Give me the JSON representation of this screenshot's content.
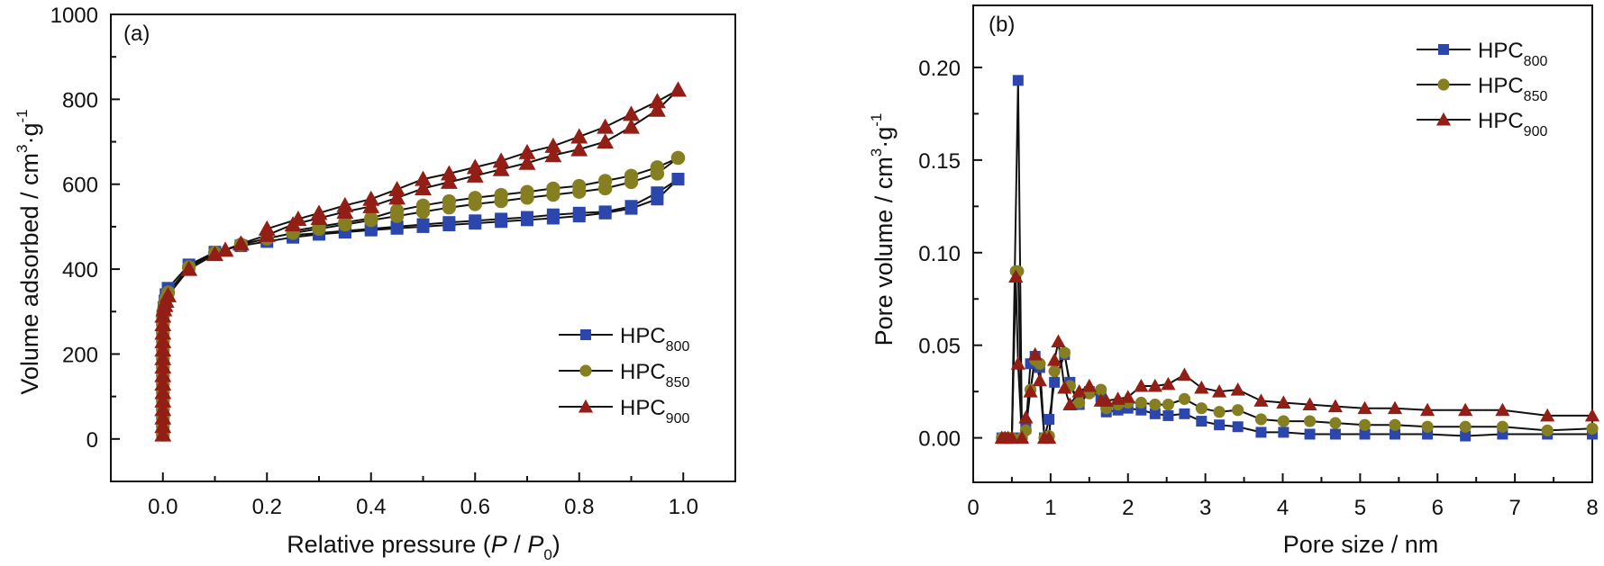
{
  "chart_data": [
    {
      "type": "line",
      "panel_label": "(a)",
      "title": "",
      "xlabel": "Relative pressure (P/P0)",
      "xlabel_parts": {
        "prefix": "Relative pressure (",
        "p": "P",
        "slash": " / ",
        "p0": "P",
        "sub": "0",
        "suffix": ")"
      },
      "ylabel": "Volume adsorbed / cm3·g-1",
      "ylabel_parts": {
        "main": "Volume adsorbed / cm",
        "sup1": "3",
        "mid": "·g",
        "sup2": "-1"
      },
      "xlim": [
        -0.1,
        1.1
      ],
      "ylim": [
        -100,
        1000
      ],
      "xticks": [
        "0.0",
        "0.2",
        "0.4",
        "0.6",
        "0.8",
        "1.0"
      ],
      "xtick_values": [
        0,
        0.2,
        0.4,
        0.6,
        0.8,
        1.0
      ],
      "yticks": [
        "0",
        "200",
        "400",
        "600",
        "800",
        "1000"
      ],
      "ytick_values": [
        0,
        200,
        400,
        600,
        800,
        1000
      ],
      "grid": false,
      "legend_position": "lower-right",
      "series": [
        {
          "name": "HPC",
          "sub": "800",
          "marker": "square",
          "color": "#2b47ad",
          "adsorption": {
            "x": [
              0.0,
              0.0,
              0.0,
              0.0,
              0.0,
              0.0,
              0.0,
              0.0,
              0.0,
              0.0,
              0.0,
              0.0,
              0.0,
              0.0,
              0.0,
              0.002,
              0.004,
              0.006,
              0.01,
              0.05,
              0.1,
              0.15,
              0.2,
              0.25,
              0.3,
              0.35,
              0.4,
              0.45,
              0.5,
              0.55,
              0.6,
              0.65,
              0.7,
              0.75,
              0.8,
              0.85,
              0.9,
              0.95,
              0.99
            ],
            "y": [
              10,
              30,
              50,
              70,
              90,
              110,
              130,
              150,
              170,
              190,
              210,
              230,
              250,
              270,
              290,
              310,
              325,
              340,
              355,
              410,
              440,
              455,
              465,
              475,
              482,
              487,
              492,
              496,
              500,
              504,
              508,
              512,
              516,
              520,
              525,
              532,
              543,
              565,
              612
            ]
          },
          "desorption": {
            "x": [
              0.99,
              0.95,
              0.9,
              0.85,
              0.8,
              0.75,
              0.7,
              0.65,
              0.6,
              0.55,
              0.5,
              0.45,
              0.4,
              0.35,
              0.3,
              0.25
            ],
            "y": [
              612,
              580,
              548,
              535,
              532,
              528,
              522,
              518,
              514,
              510,
              505,
              500,
              495,
              490,
              485,
              480
            ]
          }
        },
        {
          "name": "HPC",
          "sub": "850",
          "marker": "circle",
          "color": "#857f22",
          "adsorption": {
            "x": [
              0.0,
              0.0,
              0.0,
              0.0,
              0.0,
              0.0,
              0.0,
              0.0,
              0.0,
              0.0,
              0.0,
              0.0,
              0.0,
              0.0,
              0.0,
              0.002,
              0.004,
              0.006,
              0.01,
              0.05,
              0.1,
              0.15,
              0.2,
              0.25,
              0.3,
              0.35,
              0.4,
              0.45,
              0.5,
              0.55,
              0.6,
              0.65,
              0.7,
              0.75,
              0.8,
              0.85,
              0.9,
              0.95,
              0.99
            ],
            "y": [
              10,
              30,
              50,
              70,
              90,
              110,
              130,
              150,
              170,
              190,
              210,
              230,
              250,
              270,
              290,
              305,
              318,
              330,
              345,
              405,
              438,
              458,
              472,
              485,
              495,
              505,
              515,
              525,
              535,
              545,
              553,
              560,
              568,
              575,
              582,
              590,
              605,
              625,
              662
            ]
          },
          "desorption": {
            "x": [
              0.99,
              0.95,
              0.9,
              0.85,
              0.8,
              0.75,
              0.7,
              0.65,
              0.6,
              0.55,
              0.5,
              0.45,
              0.4,
              0.35,
              0.3,
              0.25
            ],
            "y": [
              662,
              640,
              620,
              608,
              596,
              590,
              582,
              575,
              568,
              560,
              550,
              538,
              520,
              510,
              500,
              490
            ]
          }
        },
        {
          "name": "HPC",
          "sub": "900",
          "marker": "triangle",
          "color": "#921e16",
          "adsorption": {
            "x": [
              0.0,
              0.0,
              0.0,
              0.0,
              0.0,
              0.0,
              0.0,
              0.0,
              0.0,
              0.0,
              0.0,
              0.0,
              0.0,
              0.0,
              0.0,
              0.002,
              0.004,
              0.006,
              0.01,
              0.05,
              0.1,
              0.12,
              0.15,
              0.2,
              0.25,
              0.3,
              0.35,
              0.4,
              0.45,
              0.5,
              0.55,
              0.6,
              0.65,
              0.7,
              0.75,
              0.8,
              0.85,
              0.9,
              0.95,
              0.99
            ],
            "y": [
              10,
              30,
              50,
              70,
              90,
              110,
              130,
              150,
              170,
              190,
              210,
              230,
              250,
              270,
              290,
              305,
              315,
              325,
              338,
              400,
              435,
              445,
              460,
              480,
              505,
              520,
              535,
              548,
              568,
              590,
              605,
              620,
              635,
              650,
              668,
              682,
              700,
              735,
              775,
              822
            ]
          },
          "desorption": {
            "x": [
              0.99,
              0.95,
              0.9,
              0.85,
              0.8,
              0.75,
              0.7,
              0.65,
              0.6,
              0.55,
              0.5,
              0.45,
              0.4,
              0.35,
              0.3,
              0.26,
              0.2
            ],
            "y": [
              822,
              795,
              765,
              735,
              712,
              690,
              675,
              655,
              640,
              625,
              612,
              588,
              565,
              550,
              532,
              518,
              495
            ]
          }
        }
      ]
    },
    {
      "type": "line",
      "panel_label": "(b)",
      "title": "",
      "xlabel": "Pore size / nm",
      "ylabel": "Pore volume / cm3·g-1",
      "ylabel_parts": {
        "main": "Pore volume / cm",
        "sup1": "3",
        "mid": "·g",
        "sup2": "-1"
      },
      "xlim": [
        0,
        8
      ],
      "ylim": [
        -0.024,
        0.2335
      ],
      "xticks": [
        "0",
        "1",
        "2",
        "3",
        "4",
        "5",
        "6",
        "7",
        "8"
      ],
      "xtick_values": [
        0,
        1,
        2,
        3,
        4,
        5,
        6,
        7,
        8
      ],
      "yticks": [
        "0.00",
        "0.05",
        "0.10",
        "0.15",
        "0.20"
      ],
      "ytick_values": [
        0,
        0.05,
        0.1,
        0.15,
        0.2
      ],
      "grid": false,
      "legend_position": "top-right",
      "series": [
        {
          "name": "HPC",
          "sub": "800",
          "marker": "square",
          "color": "#2b47ad",
          "x": [
            0.37,
            0.41,
            0.45,
            0.5,
            0.58,
            0.63,
            0.68,
            0.74,
            0.8,
            0.86,
            0.92,
            0.98,
            1.05,
            1.18,
            1.25,
            1.37,
            1.5,
            1.65,
            1.72,
            1.87,
            2.0,
            2.17,
            2.35,
            2.52,
            2.73,
            2.95,
            3.18,
            3.42,
            3.72,
            4.01,
            4.35,
            4.68,
            5.06,
            5.45,
            5.87,
            6.36,
            6.84,
            7.42,
            8.0
          ],
          "y": [
            0,
            0,
            0,
            0,
            0.193,
            0,
            0.005,
            0.04,
            0.044,
            0.038,
            0,
            0.01,
            0.03,
            0.045,
            0.03,
            0.018,
            0.025,
            0.022,
            0.014,
            0.015,
            0.016,
            0.015,
            0.013,
            0.012,
            0.013,
            0.009,
            0.007,
            0.006,
            0.003,
            0.003,
            0.002,
            0.002,
            0.002,
            0.002,
            0.002,
            0.001,
            0.002,
            0.002,
            0.002
          ]
        },
        {
          "name": "HPC",
          "sub": "850",
          "marker": "circle",
          "color": "#857f22",
          "x": [
            0.37,
            0.41,
            0.45,
            0.5,
            0.55,
            0.58,
            0.63,
            0.68,
            0.74,
            0.8,
            0.86,
            0.92,
            0.98,
            1.05,
            1.18,
            1.25,
            1.37,
            1.5,
            1.65,
            1.72,
            1.87,
            2.0,
            2.17,
            2.35,
            2.52,
            2.73,
            2.95,
            3.18,
            3.42,
            3.72,
            4.01,
            4.35,
            4.68,
            5.06,
            5.45,
            5.87,
            6.36,
            6.84,
            7.42,
            8.0
          ],
          "y": [
            0,
            0,
            0,
            0,
            0.09,
            0.09,
            0,
            0.004,
            0.026,
            0.042,
            0.04,
            0,
            0.001,
            0.036,
            0.046,
            0.028,
            0.019,
            0.024,
            0.026,
            0.016,
            0.018,
            0.019,
            0.019,
            0.018,
            0.018,
            0.021,
            0.016,
            0.014,
            0.015,
            0.01,
            0.009,
            0.009,
            0.008,
            0.007,
            0.007,
            0.006,
            0.006,
            0.006,
            0.004,
            0.005
          ]
        },
        {
          "name": "HPC",
          "sub": "900",
          "marker": "triangle",
          "color": "#921e16",
          "x": [
            0.37,
            0.41,
            0.45,
            0.5,
            0.55,
            0.58,
            0.63,
            0.68,
            0.74,
            0.8,
            0.86,
            0.92,
            0.98,
            1.05,
            1.1,
            1.18,
            1.25,
            1.37,
            1.5,
            1.65,
            1.72,
            1.87,
            2.0,
            2.17,
            2.35,
            2.52,
            2.73,
            2.95,
            3.18,
            3.42,
            3.72,
            4.01,
            4.35,
            4.68,
            5.06,
            5.45,
            5.87,
            6.36,
            6.84,
            7.42,
            8.0
          ],
          "y": [
            0,
            0,
            0,
            0,
            0.087,
            0.04,
            0,
            0.011,
            0.025,
            0.045,
            0.031,
            0,
            0,
            0.042,
            0.052,
            0.027,
            0.018,
            0.025,
            0.028,
            0.02,
            0.02,
            0.021,
            0.022,
            0.028,
            0.028,
            0.029,
            0.034,
            0.027,
            0.025,
            0.026,
            0.02,
            0.019,
            0.018,
            0.017,
            0.016,
            0.016,
            0.015,
            0.015,
            0.015,
            0.012,
            0.012
          ]
        }
      ]
    }
  ]
}
